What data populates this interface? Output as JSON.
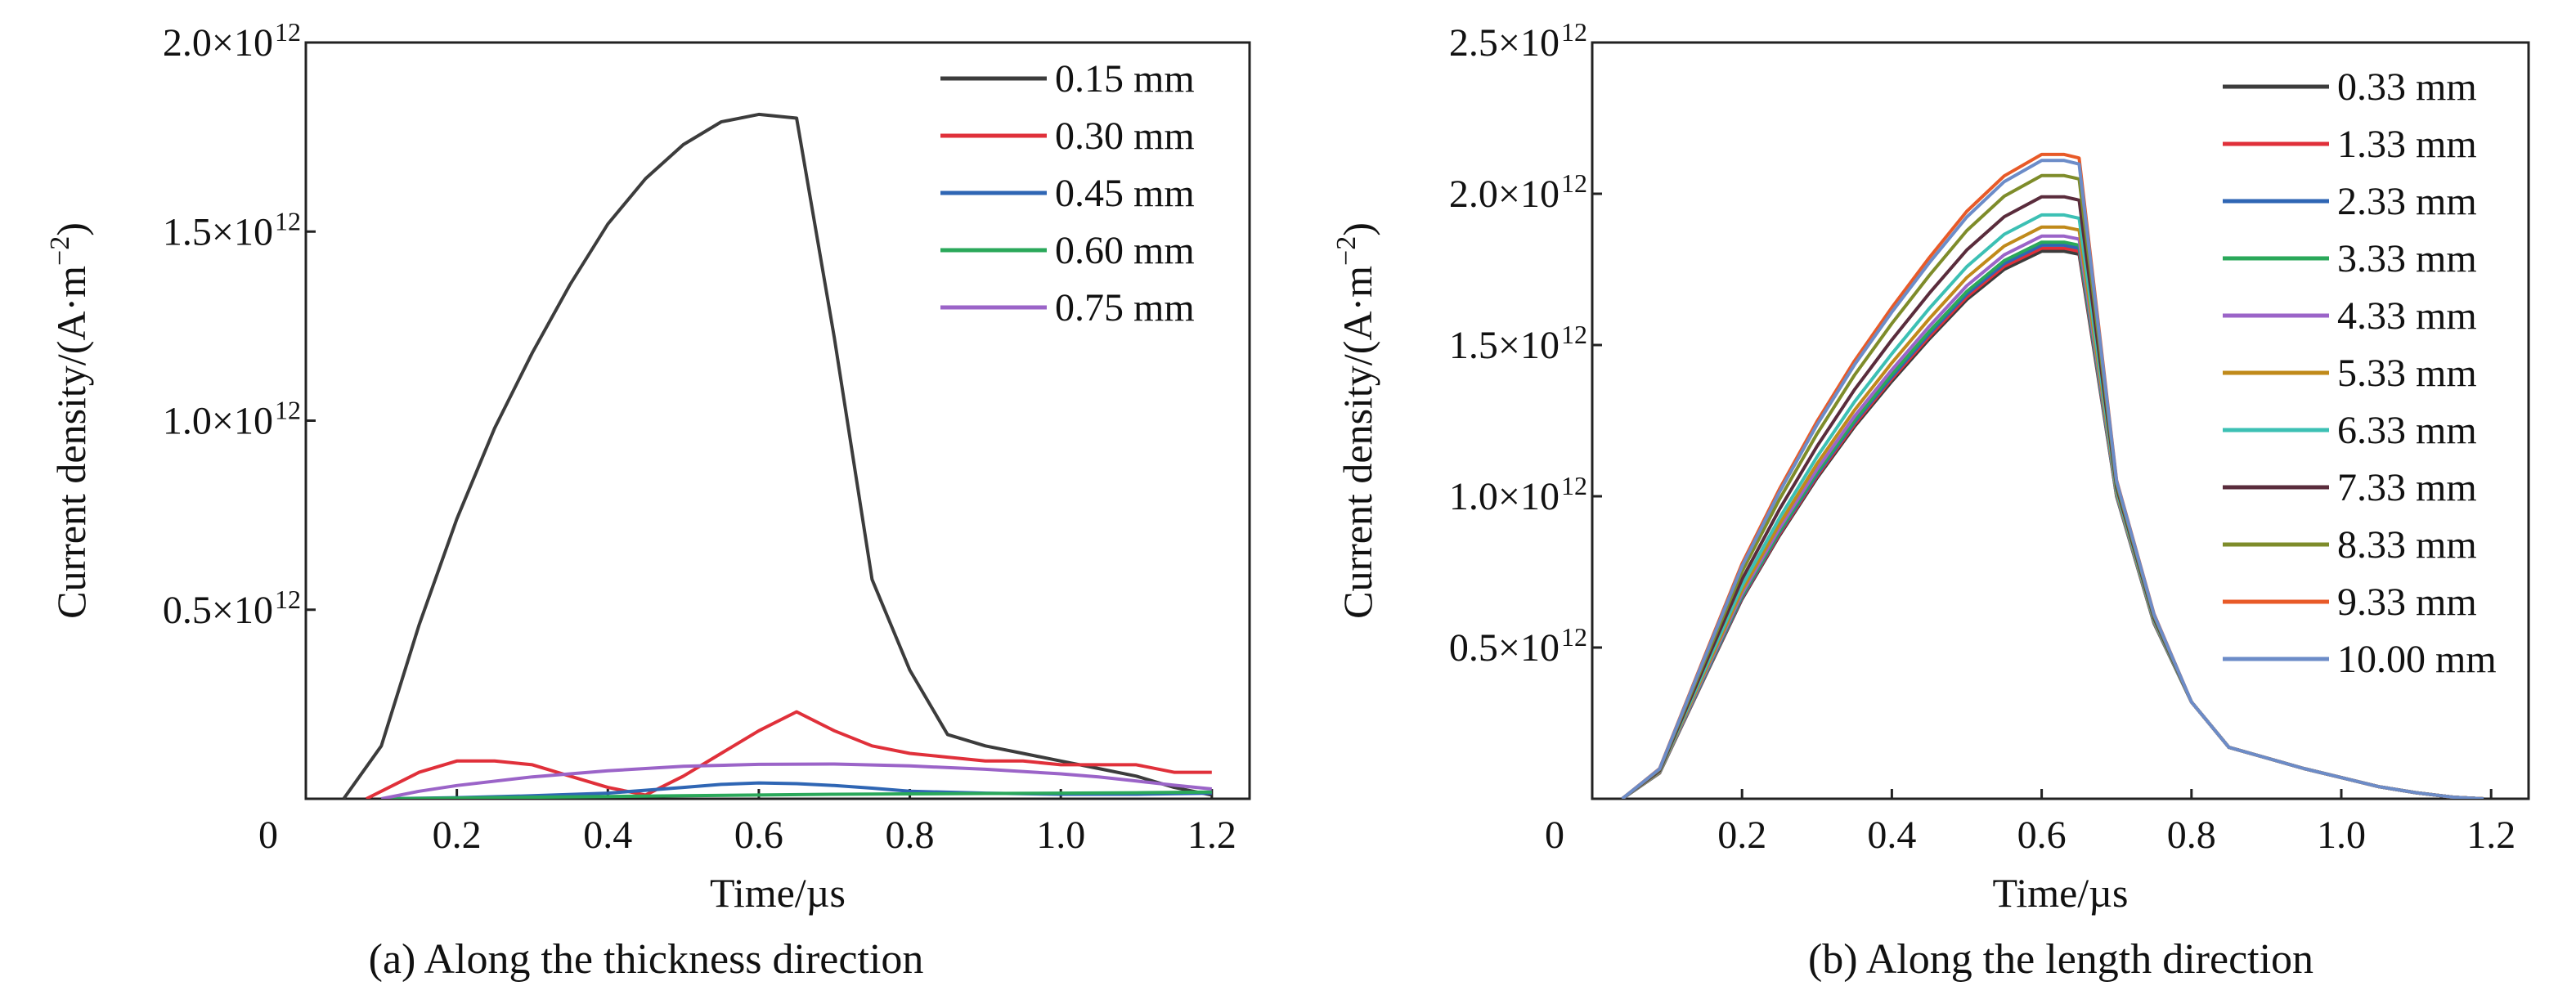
{
  "sup_exp": "12",
  "chart_data": [
    {
      "type": "line",
      "caption": "(a) Along the thickness direction",
      "xlabel": "Time/µs",
      "ylabel": "Current density/(A·m",
      "ylabel_sup": "−2",
      "ylabel_tail": ")",
      "xlim": [
        0,
        1.25
      ],
      "ylim": [
        0,
        2.0
      ],
      "xticks": [
        0.2,
        0.4,
        0.6,
        0.8,
        1.0,
        1.2
      ],
      "xtick_labels": [
        "0.2",
        "0.4",
        "0.6",
        "0.8",
        "1.0",
        "1.2"
      ],
      "yticks": [
        0.5,
        1.0,
        1.5,
        2.0
      ],
      "ytick_labels": [
        "0.5×10",
        "1.0×10",
        "1.5×10",
        "2.0×10"
      ],
      "origin_label": "0",
      "legend_position": "top-right",
      "series": [
        {
          "name": "0.15 mm",
          "color": "#3c3c3c",
          "x": [
            0.05,
            0.1,
            0.15,
            0.2,
            0.25,
            0.3,
            0.35,
            0.4,
            0.45,
            0.5,
            0.55,
            0.6,
            0.65,
            0.7,
            0.75,
            0.8,
            0.85,
            0.9,
            0.95,
            1.0,
            1.05,
            1.1,
            1.15,
            1.2
          ],
          "y": [
            0.0,
            0.14,
            0.46,
            0.74,
            0.98,
            1.18,
            1.36,
            1.52,
            1.64,
            1.73,
            1.79,
            1.81,
            1.8,
            1.22,
            0.58,
            0.34,
            0.17,
            0.14,
            0.12,
            0.1,
            0.08,
            0.06,
            0.03,
            0.01
          ]
        },
        {
          "name": "0.30 mm",
          "color": "#e0303a",
          "x": [
            0.08,
            0.15,
            0.2,
            0.25,
            0.3,
            0.35,
            0.4,
            0.45,
            0.5,
            0.55,
            0.6,
            0.65,
            0.7,
            0.75,
            0.8,
            0.85,
            0.9,
            0.95,
            1.0,
            1.05,
            1.1,
            1.15,
            1.2
          ],
          "y": [
            0.0,
            0.07,
            0.1,
            0.1,
            0.09,
            0.06,
            0.03,
            0.01,
            0.06,
            0.12,
            0.18,
            0.23,
            0.18,
            0.14,
            0.12,
            0.11,
            0.1,
            0.1,
            0.09,
            0.09,
            0.09,
            0.07,
            0.07
          ]
        },
        {
          "name": "0.45 mm",
          "color": "#2f66b4",
          "x": [
            0.1,
            0.2,
            0.3,
            0.4,
            0.5,
            0.55,
            0.6,
            0.65,
            0.7,
            0.75,
            0.8,
            0.9,
            1.0,
            1.1,
            1.2
          ],
          "y": [
            0.0,
            0.003,
            0.008,
            0.015,
            0.03,
            0.038,
            0.042,
            0.04,
            0.035,
            0.028,
            0.02,
            0.015,
            0.012,
            0.012,
            0.015
          ]
        },
        {
          "name": "0.60 mm",
          "color": "#2aa85a",
          "x": [
            0.1,
            0.2,
            0.3,
            0.4,
            0.5,
            0.6,
            0.7,
            0.8,
            0.9,
            1.0,
            1.1,
            1.2
          ],
          "y": [
            0.0,
            0.002,
            0.004,
            0.006,
            0.008,
            0.01,
            0.012,
            0.013,
            0.014,
            0.015,
            0.016,
            0.018
          ]
        },
        {
          "name": "0.75 mm",
          "color": "#9b64c8",
          "x": [
            0.1,
            0.15,
            0.2,
            0.3,
            0.4,
            0.5,
            0.6,
            0.7,
            0.8,
            0.9,
            1.0,
            1.05,
            1.1,
            1.15,
            1.2
          ],
          "y": [
            0.0,
            0.02,
            0.035,
            0.058,
            0.074,
            0.086,
            0.091,
            0.092,
            0.087,
            0.078,
            0.066,
            0.058,
            0.047,
            0.036,
            0.026
          ]
        }
      ]
    },
    {
      "type": "line",
      "caption": "(b) Along the length direction",
      "xlabel": "Time/µs",
      "ylabel": "Current density/(A·m",
      "ylabel_sup": "−2",
      "ylabel_tail": ")",
      "xlim": [
        0,
        1.25
      ],
      "ylim": [
        0,
        2.5
      ],
      "xticks": [
        0.2,
        0.4,
        0.6,
        0.8,
        1.0,
        1.2
      ],
      "xtick_labels": [
        "0.2",
        "0.4",
        "0.6",
        "0.8",
        "1.0",
        "1.2"
      ],
      "yticks": [
        0.5,
        1.0,
        1.5,
        2.0,
        2.5
      ],
      "ytick_labels": [
        "0.5×10",
        "1.0×10",
        "1.5×10",
        "2.0×10",
        "2.5×10"
      ],
      "origin_label": "0",
      "legend_position": "top-right",
      "shared_x": [
        0.04,
        0.09,
        0.15,
        0.2,
        0.25,
        0.3,
        0.35,
        0.4,
        0.45,
        0.5,
        0.55,
        0.6,
        0.63,
        0.65,
        0.7,
        0.75,
        0.8,
        0.85,
        0.9,
        0.95,
        1.0,
        1.05,
        1.1,
        1.15,
        1.19
      ],
      "series": [
        {
          "name": "0.33 mm",
          "color": "#3c3c3c",
          "peak": 1.81
        },
        {
          "name": "1.33 mm",
          "color": "#e0303a",
          "peak": 1.82
        },
        {
          "name": "2.33 mm",
          "color": "#2f66b4",
          "peak": 1.83
        },
        {
          "name": "3.33 mm",
          "color": "#2aa85a",
          "peak": 1.84
        },
        {
          "name": "4.33 mm",
          "color": "#9b64c8",
          "peak": 1.86
        },
        {
          "name": "5.33 mm",
          "color": "#c08a1a",
          "peak": 1.89
        },
        {
          "name": "6.33 mm",
          "color": "#3cc0b4",
          "peak": 1.93
        },
        {
          "name": "7.33 mm",
          "color": "#5a2c3c",
          "peak": 1.99
        },
        {
          "name": "8.33 mm",
          "color": "#7e8c2a",
          "peak": 2.06
        },
        {
          "name": "9.33 mm",
          "color": "#e85a28",
          "peak": 2.13
        },
        {
          "name": "10.00 mm",
          "color": "#6c8cc8",
          "peak": 2.11
        }
      ]
    }
  ]
}
